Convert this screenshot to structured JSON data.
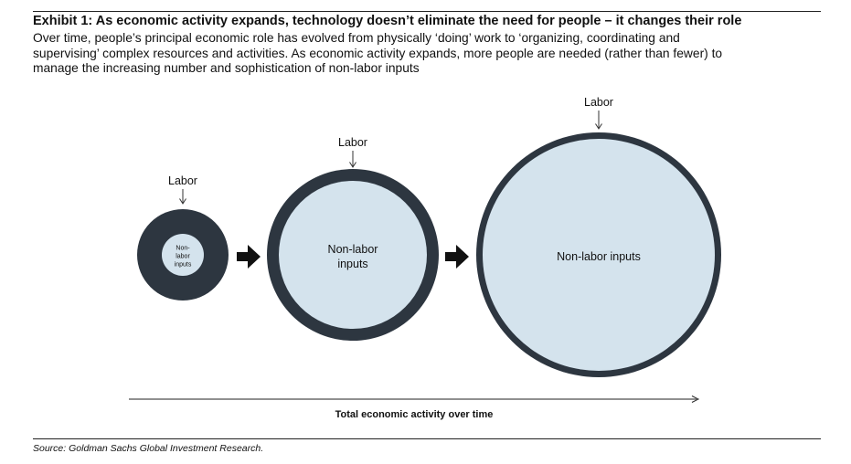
{
  "title": "Exhibit 1: As economic activity expands, technology doesn’t eliminate the need for people – it changes their role",
  "subtitle_lines": [
    "Over time, people’s principal economic role has evolved from physically ‘doing’ work to ‘organizing, coordinating and",
    "supervising’ complex resources and activities. As economic activity expands, more people are needed (rather than fewer) to",
    "manage the increasing number and sophistication of non-labor inputs"
  ],
  "stages": [
    {
      "labor_label": "Labor",
      "inner_label_lines": [
        "Non-",
        "labor",
        "inputs"
      ]
    },
    {
      "labor_label": "Labor",
      "inner_label_lines": [
        "Non-labor",
        "inputs"
      ]
    },
    {
      "labor_label": "Labor",
      "inner_label_lines": [
        "Non-labor inputs"
      ]
    }
  ],
  "axis_label": "Total economic activity over time",
  "source": "Source: Goldman Sachs Global Investment Research.",
  "colors": {
    "labor_ring": "#2d3640",
    "non_labor_fill": "#d4e3ed",
    "arrow": "#111111",
    "text": "#111111"
  }
}
